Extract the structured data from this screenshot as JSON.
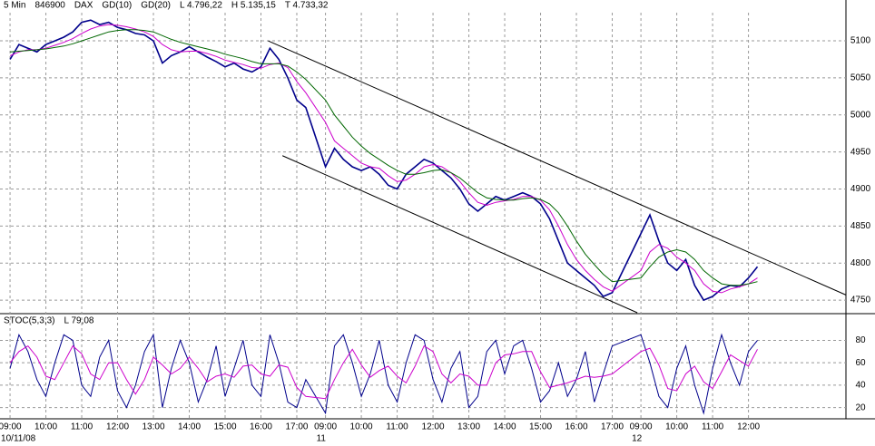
{
  "chart_data": [
    {
      "type": "line",
      "interval": "5 Min",
      "symbol": "846900",
      "stats": [
        "L 4.796,22",
        "H 5.135,15",
        "T 4.733,32"
      ],
      "x": [
        0,
        0.25,
        0.5,
        0.75,
        1,
        1.25,
        1.5,
        1.75,
        2,
        2.25,
        2.5,
        2.75,
        3,
        3.25,
        3.5,
        3.75,
        4,
        4.25,
        4.5,
        4.75,
        5,
        5.25,
        5.5,
        5.75,
        6,
        6.25,
        6.5,
        6.75,
        7,
        7.25,
        7.5,
        7.75,
        8,
        8.25,
        8.8,
        9.05,
        9.3,
        9.55,
        9.8,
        10.05,
        10.3,
        10.55,
        10.8,
        11.05,
        11.3,
        11.55,
        11.8,
        12.05,
        12.3,
        12.55,
        12.8,
        13.05,
        13.3,
        13.55,
        13.8,
        14.05,
        14.3,
        14.55,
        14.8,
        15.05,
        15.3,
        15.55,
        15.8,
        16.05,
        16.3,
        16.55,
        16.8,
        17.6,
        17.85,
        18.1,
        18.35,
        18.6,
        18.85,
        19.1,
        19.35,
        19.6,
        19.85,
        20.1,
        20.35,
        20.6,
        20.85
      ],
      "series": [
        {
          "name": "DAX",
          "color": "#00008b",
          "values": [
            5075,
            5095,
            5090,
            5085,
            5095,
            5100,
            5105,
            5112,
            5125,
            5128,
            5122,
            5125,
            5118,
            5115,
            5110,
            5108,
            5100,
            5070,
            5080,
            5085,
            5092,
            5085,
            5078,
            5072,
            5065,
            5070,
            5062,
            5058,
            5065,
            5090,
            5075,
            5050,
            5020,
            5010,
            4930,
            4955,
            4940,
            4930,
            4925,
            4930,
            4920,
            4905,
            4900,
            4920,
            4930,
            4940,
            4935,
            4925,
            4915,
            4900,
            4880,
            4870,
            4880,
            4890,
            4885,
            4890,
            4895,
            4890,
            4880,
            4860,
            4830,
            4800,
            4790,
            4780,
            4770,
            4755,
            4760,
            4840,
            4865,
            4830,
            4800,
            4790,
            4805,
            4770,
            4750,
            4755,
            4765,
            4770,
            4768,
            4780,
            4795
          ]
        },
        {
          "name": "GD(10)",
          "color": "#cc00cc",
          "values": [
            5080,
            5085,
            5088,
            5088,
            5090,
            5094,
            5098,
            5103,
            5110,
            5116,
            5120,
            5122,
            5121,
            5119,
            5116,
            5112,
            5106,
            5095,
            5088,
            5085,
            5086,
            5086,
            5083,
            5079,
            5074,
            5071,
            5068,
            5064,
            5063,
            5068,
            5070,
            5064,
            5045,
            5030,
            4990,
            4965,
            4955,
            4945,
            4935,
            4930,
            4928,
            4918,
            4910,
            4912,
            4920,
            4930,
            4933,
            4930,
            4922,
            4910,
            4895,
            4882,
            4878,
            4882,
            4884,
            4886,
            4890,
            4890,
            4885,
            4872,
            4850,
            4825,
            4805,
            4790,
            4778,
            4768,
            4762,
            4790,
            4815,
            4825,
            4820,
            4808,
            4800,
            4790,
            4772,
            4762,
            4760,
            4765,
            4768,
            4772,
            4780
          ]
        },
        {
          "name": "GD(20)",
          "color": "#006600",
          "values": [
            5085,
            5086,
            5087,
            5088,
            5089,
            5091,
            5093,
            5096,
            5100,
            5104,
            5108,
            5112,
            5114,
            5115,
            5115,
            5114,
            5112,
            5107,
            5102,
            5098,
            5095,
            5092,
            5089,
            5086,
            5082,
            5079,
            5076,
            5072,
            5069,
            5069,
            5069,
            5066,
            5058,
            5048,
            5020,
            5000,
            4985,
            4970,
            4958,
            4948,
            4940,
            4932,
            4925,
            4920,
            4920,
            4922,
            4925,
            4926,
            4922,
            4915,
            4905,
            4895,
            4888,
            4886,
            4885,
            4885,
            4887,
            4888,
            4886,
            4880,
            4868,
            4850,
            4830,
            4812,
            4798,
            4785,
            4775,
            4780,
            4795,
            4808,
            4815,
            4818,
            4815,
            4805,
            4790,
            4780,
            4772,
            4770,
            4770,
            4772,
            4775
          ]
        }
      ],
      "trendlines": [
        {
          "x": [
            7.2,
            23.32
          ],
          "y": [
            5100,
            4757
          ]
        },
        {
          "x": [
            7.6,
            17.5
          ],
          "y": [
            4945,
            4733
          ]
        }
      ],
      "xlim": [
        -0.28,
        23.32
      ],
      "ylim": [
        4733,
        5138
      ],
      "yticks": [
        4750,
        4800,
        4850,
        4900,
        4950,
        5000,
        5050,
        5100
      ],
      "grid": true
    },
    {
      "type": "line",
      "title": "STOC(5,3,3)",
      "stats": [
        "L 79,08"
      ],
      "x": [
        0,
        0.25,
        0.5,
        0.75,
        1,
        1.25,
        1.5,
        1.75,
        2,
        2.25,
        2.5,
        2.75,
        3,
        3.25,
        3.5,
        3.75,
        4,
        4.25,
        4.5,
        4.75,
        5,
        5.25,
        5.5,
        5.75,
        6,
        6.25,
        6.5,
        6.75,
        7,
        7.25,
        7.5,
        7.75,
        8,
        8.25,
        8.8,
        9.05,
        9.3,
        9.55,
        9.8,
        10.05,
        10.3,
        10.55,
        10.8,
        11.05,
        11.3,
        11.55,
        11.8,
        12.05,
        12.3,
        12.55,
        12.8,
        13.05,
        13.3,
        13.55,
        13.8,
        14.05,
        14.3,
        14.55,
        14.8,
        15.05,
        15.3,
        15.55,
        15.8,
        16.05,
        16.3,
        16.55,
        16.8,
        17.6,
        17.85,
        18.1,
        18.35,
        18.6,
        18.85,
        19.1,
        19.35,
        19.6,
        19.85,
        20.1,
        20.35,
        20.6,
        20.85
      ],
      "series": [
        {
          "color": "#00008b",
          "values": [
            55,
            85,
            70,
            45,
            30,
            60,
            85,
            80,
            40,
            30,
            65,
            80,
            35,
            20,
            40,
            70,
            85,
            20,
            55,
            80,
            60,
            25,
            45,
            75,
            30,
            55,
            80,
            40,
            30,
            85,
            60,
            25,
            20,
            45,
            15,
            75,
            85,
            60,
            30,
            50,
            80,
            40,
            25,
            60,
            85,
            80,
            45,
            25,
            55,
            70,
            20,
            30,
            70,
            80,
            50,
            75,
            80,
            55,
            25,
            35,
            60,
            30,
            45,
            70,
            25,
            50,
            75,
            85,
            60,
            30,
            20,
            55,
            75,
            40,
            15,
            55,
            85,
            60,
            40,
            70,
            80
          ]
        },
        {
          "color": "#cc00cc",
          "values": [
            60,
            70,
            75,
            65,
            48,
            45,
            60,
            75,
            68,
            50,
            45,
            60,
            60,
            45,
            32,
            45,
            65,
            58,
            50,
            55,
            65,
            55,
            43,
            48,
            50,
            47,
            57,
            58,
            50,
            48,
            58,
            56,
            38,
            30,
            28,
            45,
            60,
            72,
            58,
            47,
            53,
            57,
            48,
            42,
            57,
            75,
            70,
            50,
            42,
            50,
            48,
            40,
            40,
            60,
            67,
            68,
            70,
            70,
            52,
            38,
            40,
            42,
            45,
            48,
            47,
            48,
            50,
            70,
            73,
            58,
            37,
            35,
            50,
            57,
            43,
            37,
            52,
            67,
            62,
            57,
            72
          ]
        }
      ],
      "xlim": [
        -0.28,
        23.32
      ],
      "ylim": [
        10,
        103
      ],
      "yticks": [
        20,
        40,
        60,
        80
      ],
      "grid": true,
      "xticks": [
        {
          "value": 0,
          "label": "09:00"
        },
        {
          "value": 1,
          "label": "10:00"
        },
        {
          "value": 2,
          "label": "11:00"
        },
        {
          "value": 3,
          "label": "12:00"
        },
        {
          "value": 4,
          "label": "13:00"
        },
        {
          "value": 5,
          "label": "14:00"
        },
        {
          "value": 6,
          "label": "15:00"
        },
        {
          "value": 7,
          "label": "16:00"
        },
        {
          "value": 8,
          "label": "17:00"
        },
        {
          "value": 8.8,
          "label": "09:00"
        },
        {
          "value": 9.8,
          "label": "10:00"
        },
        {
          "value": 10.8,
          "label": "11:00"
        },
        {
          "value": 11.8,
          "label": "12:00"
        },
        {
          "value": 12.8,
          "label": "13:00"
        },
        {
          "value": 13.8,
          "label": "14:00"
        },
        {
          "value": 14.8,
          "label": "15:00"
        },
        {
          "value": 15.8,
          "label": "16:00"
        },
        {
          "value": 16.8,
          "label": "17:00"
        },
        {
          "value": 17.6,
          "label": "09:00"
        },
        {
          "value": 18.6,
          "label": "10:00"
        },
        {
          "value": 19.6,
          "label": "11:00"
        },
        {
          "value": 20.6,
          "label": "12:00"
        }
      ],
      "dates": [
        {
          "value": 0,
          "label": "10/11/08"
        },
        {
          "value": 8.8,
          "label": "11"
        },
        {
          "value": 17.6,
          "label": "12"
        }
      ]
    }
  ]
}
